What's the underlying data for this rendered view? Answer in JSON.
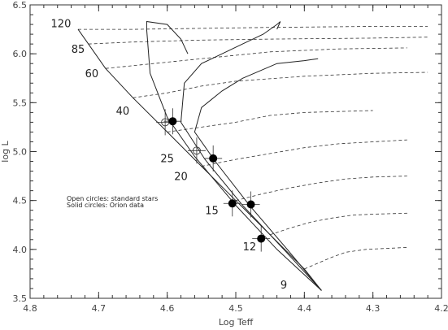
{
  "chart_data": {
    "type": "scatter",
    "xlabel": "Log Teff",
    "ylabel": "log L",
    "xlim": [
      4.8,
      4.2
    ],
    "ylim": [
      3.5,
      6.5
    ],
    "x_reversed": true,
    "grid": false,
    "x_ticks": [
      "4.8",
      "4.7",
      "4.6",
      "4.5",
      "4.4",
      "4.3",
      "4.2"
    ],
    "y_ticks": [
      "3.5",
      "4.0",
      "4.5",
      "5.0",
      "5.5",
      "6.0",
      "6.5"
    ],
    "legend": {
      "placement": "middle-left",
      "lines": [
        "Open circles: standard stars",
        "Solid circles: Orion data"
      ]
    },
    "mass_labels": [
      {
        "text": "120",
        "x": 4.755,
        "y": 6.27
      },
      {
        "text": "85",
        "x": 4.73,
        "y": 6.01
      },
      {
        "text": "60",
        "x": 4.71,
        "y": 5.76
      },
      {
        "text": "40",
        "x": 4.665,
        "y": 5.38
      },
      {
        "text": "25",
        "x": 4.6,
        "y": 4.89
      },
      {
        "text": "20",
        "x": 4.58,
        "y": 4.71
      },
      {
        "text": "15",
        "x": 4.535,
        "y": 4.36
      },
      {
        "text": "12",
        "x": 4.48,
        "y": 3.99
      },
      {
        "text": "9",
        "x": 4.43,
        "y": 3.6
      }
    ],
    "zams": [
      [
        4.73,
        6.25
      ],
      [
        4.715,
        6.1
      ],
      [
        4.69,
        5.85
      ],
      [
        4.65,
        5.55
      ],
      [
        4.6,
        5.2
      ],
      [
        4.55,
        4.85
      ],
      [
        4.5,
        4.5
      ],
      [
        4.45,
        4.15
      ],
      [
        4.4,
        3.8
      ],
      [
        4.375,
        3.58
      ]
    ],
    "isochrones": [
      [
        [
          4.375,
          3.58
        ],
        [
          4.44,
          4.0
        ],
        [
          4.5,
          4.45
        ],
        [
          4.56,
          4.95
        ],
        [
          4.6,
          5.35
        ],
        [
          4.625,
          5.8
        ],
        [
          4.63,
          6.25
        ],
        [
          4.63,
          6.33
        ],
        [
          4.6,
          6.3
        ],
        [
          4.58,
          6.15
        ],
        [
          4.57,
          6.0
        ]
      ],
      [
        [
          4.375,
          3.58
        ],
        [
          4.43,
          4.0
        ],
        [
          4.49,
          4.45
        ],
        [
          4.545,
          4.92
        ],
        [
          4.58,
          5.3
        ],
        [
          4.575,
          5.7
        ],
        [
          4.55,
          5.9
        ],
        [
          4.52,
          6.0
        ],
        [
          4.49,
          6.1
        ],
        [
          4.46,
          6.2
        ],
        [
          4.44,
          6.3
        ],
        [
          4.435,
          6.33
        ],
        [
          4.44,
          6.25
        ]
      ],
      [
        [
          4.375,
          3.58
        ],
        [
          4.425,
          4.0
        ],
        [
          4.48,
          4.45
        ],
        [
          4.53,
          4.9
        ],
        [
          4.56,
          5.2
        ],
        [
          4.55,
          5.45
        ],
        [
          4.52,
          5.62
        ],
        [
          4.49,
          5.75
        ],
        [
          4.44,
          5.9
        ],
        [
          4.4,
          5.93
        ],
        [
          4.38,
          5.95
        ]
      ]
    ],
    "tracks": [
      [
        [
          4.73,
          6.25
        ],
        [
          4.65,
          6.25
        ],
        [
          4.55,
          6.26
        ],
        [
          4.45,
          6.27
        ],
        [
          4.3,
          6.28
        ],
        [
          4.22,
          6.28
        ]
      ],
      [
        [
          4.715,
          6.1
        ],
        [
          4.65,
          6.12
        ],
        [
          4.55,
          6.14
        ],
        [
          4.45,
          6.15
        ],
        [
          4.3,
          6.16
        ],
        [
          4.22,
          6.17
        ]
      ],
      [
        [
          4.69,
          5.85
        ],
        [
          4.62,
          5.9
        ],
        [
          4.55,
          5.95
        ],
        [
          4.45,
          6.02
        ],
        [
          4.35,
          6.05
        ],
        [
          4.25,
          6.06
        ]
      ],
      [
        [
          4.65,
          5.55
        ],
        [
          4.6,
          5.6
        ],
        [
          4.55,
          5.67
        ],
        [
          4.5,
          5.72
        ],
        [
          4.4,
          5.77
        ],
        [
          4.3,
          5.8
        ],
        [
          4.22,
          5.81
        ]
      ],
      [
        [
          4.6,
          5.2
        ],
        [
          4.56,
          5.24
        ],
        [
          4.5,
          5.3
        ],
        [
          4.45,
          5.37
        ],
        [
          4.4,
          5.4
        ],
        [
          4.35,
          5.41
        ],
        [
          4.3,
          5.42
        ]
      ],
      [
        [
          4.55,
          4.85
        ],
        [
          4.5,
          4.92
        ],
        [
          4.45,
          4.98
        ],
        [
          4.4,
          5.04
        ],
        [
          4.35,
          5.08
        ],
        [
          4.3,
          5.1
        ],
        [
          4.25,
          5.12
        ]
      ],
      [
        [
          4.5,
          4.5
        ],
        [
          4.46,
          4.57
        ],
        [
          4.42,
          4.63
        ],
        [
          4.38,
          4.68
        ],
        [
          4.34,
          4.72
        ],
        [
          4.3,
          4.74
        ],
        [
          4.25,
          4.75
        ]
      ],
      [
        [
          4.45,
          4.15
        ],
        [
          4.42,
          4.22
        ],
        [
          4.39,
          4.28
        ],
        [
          4.36,
          4.32
        ],
        [
          4.33,
          4.35
        ],
        [
          4.3,
          4.36
        ],
        [
          4.25,
          4.37
        ]
      ],
      [
        [
          4.4,
          3.8
        ],
        [
          4.38,
          3.86
        ],
        [
          4.36,
          3.92
        ],
        [
          4.34,
          3.97
        ],
        [
          4.31,
          4.0
        ],
        [
          4.28,
          4.01
        ],
        [
          4.25,
          4.02
        ]
      ]
    ],
    "series": [
      {
        "name": "Open circles: standard stars",
        "marker": "open",
        "points": [
          [
            4.603,
            5.3
          ],
          [
            4.557,
            5.01
          ]
        ]
      },
      {
        "name": "Solid circles: Orion data",
        "marker": "solid",
        "points": [
          [
            4.592,
            5.31
          ],
          [
            4.533,
            4.93
          ],
          [
            4.505,
            4.47
          ],
          [
            4.478,
            4.46
          ],
          [
            4.463,
            4.11
          ]
        ]
      }
    ]
  }
}
